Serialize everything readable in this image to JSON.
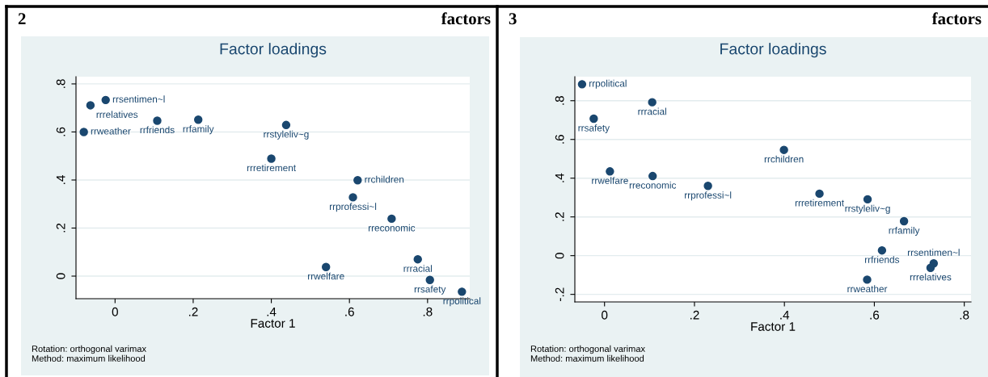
{
  "chart_data": [
    {
      "type": "scatter",
      "title": "Factor loadings",
      "xlabel": "Factor 1",
      "annotations": [
        "2",
        "factors",
        "Rotation: orthogonal varimax",
        "Method: maximum likelihood"
      ],
      "grid": "y",
      "legend": false,
      "marker": "circle",
      "xlim": [
        -0.1,
        0.908
      ],
      "ylim": [
        -0.094,
        0.83
      ],
      "xticks": [
        {
          "value": 0,
          "label": "0"
        },
        {
          "value": 0.2,
          "label": ".2"
        },
        {
          "value": 0.4,
          "label": ".4"
        },
        {
          "value": 0.6,
          "label": ".6"
        },
        {
          "value": 0.8,
          "label": ".8"
        }
      ],
      "yticks": [
        {
          "value": 0,
          "label": "0"
        },
        {
          "value": 0.2,
          "label": ".2"
        },
        {
          "value": 0.4,
          "label": ".4"
        },
        {
          "value": 0.6,
          "label": ".6"
        },
        {
          "value": 0.8,
          "label": ".8"
        }
      ],
      "series": [
        {
          "name": "rrrelatives",
          "color": "#1a476f",
          "x": [
            -0.063
          ],
          "values": [
            0.711
          ]
        },
        {
          "name": "rrsentimen~l",
          "color": "#1a476f",
          "x": [
            -0.024
          ],
          "values": [
            0.733
          ]
        },
        {
          "name": "rrweather",
          "color": "#1a476f",
          "x": [
            -0.08
          ],
          "values": [
            0.6
          ]
        },
        {
          "name": "rrfriends",
          "color": "#1a476f",
          "x": [
            0.108
          ],
          "values": [
            0.647
          ]
        },
        {
          "name": "rrfamily",
          "color": "#1a476f",
          "x": [
            0.213
          ],
          "values": [
            0.651
          ]
        },
        {
          "name": "rrstyleliv~g",
          "color": "#1a476f",
          "x": [
            0.438
          ],
          "values": [
            0.629
          ]
        },
        {
          "name": "rrretirement",
          "color": "#1a476f",
          "x": [
            0.4
          ],
          "values": [
            0.489
          ]
        },
        {
          "name": "rrchildren",
          "color": "#1a476f",
          "x": [
            0.621
          ],
          "values": [
            0.399
          ]
        },
        {
          "name": "rrprofessi~l",
          "color": "#1a476f",
          "x": [
            0.609
          ],
          "values": [
            0.328
          ]
        },
        {
          "name": "rreconomic",
          "color": "#1a476f",
          "x": [
            0.708
          ],
          "values": [
            0.239
          ]
        },
        {
          "name": "rrwelfare",
          "color": "#1a476f",
          "x": [
            0.54
          ],
          "values": [
            0.038
          ]
        },
        {
          "name": "rrracial",
          "color": "#1a476f",
          "x": [
            0.775
          ],
          "values": [
            0.07
          ]
        },
        {
          "name": "rrsafety",
          "color": "#1a476f",
          "x": [
            0.806
          ],
          "values": [
            -0.016
          ]
        },
        {
          "name": "rrpolitical",
          "color": "#1a476f",
          "x": [
            0.888
          ],
          "values": [
            -0.065
          ]
        }
      ]
    },
    {
      "type": "scatter",
      "title": "Factor loadings",
      "xlabel": "Factor 1",
      "annotations": [
        "3",
        "factors",
        "Rotation: orthogonal varimax",
        "Method: maximum likelihood"
      ],
      "grid": "y",
      "legend": false,
      "marker": "circle",
      "xlim": [
        -0.066,
        0.815
      ],
      "ylim": [
        -0.239,
        0.924
      ],
      "xticks": [
        {
          "value": 0,
          "label": "0"
        },
        {
          "value": 0.2,
          "label": ".2"
        },
        {
          "value": 0.4,
          "label": ".4"
        },
        {
          "value": 0.6,
          "label": ".6"
        },
        {
          "value": 0.8,
          "label": ".8"
        }
      ],
      "yticks": [
        {
          "value": -0.2,
          "label": "-.2"
        },
        {
          "value": 0,
          "label": "0"
        },
        {
          "value": 0.2,
          "label": ".2"
        },
        {
          "value": 0.4,
          "label": ".4"
        },
        {
          "value": 0.6,
          "label": ".6"
        },
        {
          "value": 0.8,
          "label": ".8"
        }
      ],
      "series": [
        {
          "name": "rrpolitical",
          "color": "#1a476f",
          "x": [
            -0.05
          ],
          "values": [
            0.885
          ]
        },
        {
          "name": "rrracial",
          "color": "#1a476f",
          "x": [
            0.106
          ],
          "values": [
            0.792
          ]
        },
        {
          "name": "rrsafety",
          "color": "#1a476f",
          "x": [
            -0.024
          ],
          "values": [
            0.707
          ]
        },
        {
          "name": "rrchildren",
          "color": "#1a476f",
          "x": [
            0.399
          ],
          "values": [
            0.546
          ]
        },
        {
          "name": "rrwelfare",
          "color": "#1a476f",
          "x": [
            0.012
          ],
          "values": [
            0.435
          ]
        },
        {
          "name": "rreconomic",
          "color": "#1a476f",
          "x": [
            0.107
          ],
          "values": [
            0.411
          ]
        },
        {
          "name": "rrprofessi~l",
          "color": "#1a476f",
          "x": [
            0.23
          ],
          "values": [
            0.36
          ]
        },
        {
          "name": "rrretirement",
          "color": "#1a476f",
          "x": [
            0.478
          ],
          "values": [
            0.32
          ]
        },
        {
          "name": "rrstyleliv~g",
          "color": "#1a476f",
          "x": [
            0.585
          ],
          "values": [
            0.291
          ]
        },
        {
          "name": "rrfamily",
          "color": "#1a476f",
          "x": [
            0.666
          ],
          "values": [
            0.178
          ]
        },
        {
          "name": "rrfriends",
          "color": "#1a476f",
          "x": [
            0.617
          ],
          "values": [
            0.027
          ]
        },
        {
          "name": "rrsentimen~l",
          "color": "#1a476f",
          "x": [
            0.732
          ],
          "values": [
            -0.04
          ]
        },
        {
          "name": "rrrelatives",
          "color": "#1a476f",
          "x": [
            0.725
          ],
          "values": [
            -0.063
          ]
        },
        {
          "name": "rrweather",
          "color": "#1a476f",
          "x": [
            0.584
          ],
          "values": [
            -0.124
          ]
        }
      ]
    }
  ]
}
